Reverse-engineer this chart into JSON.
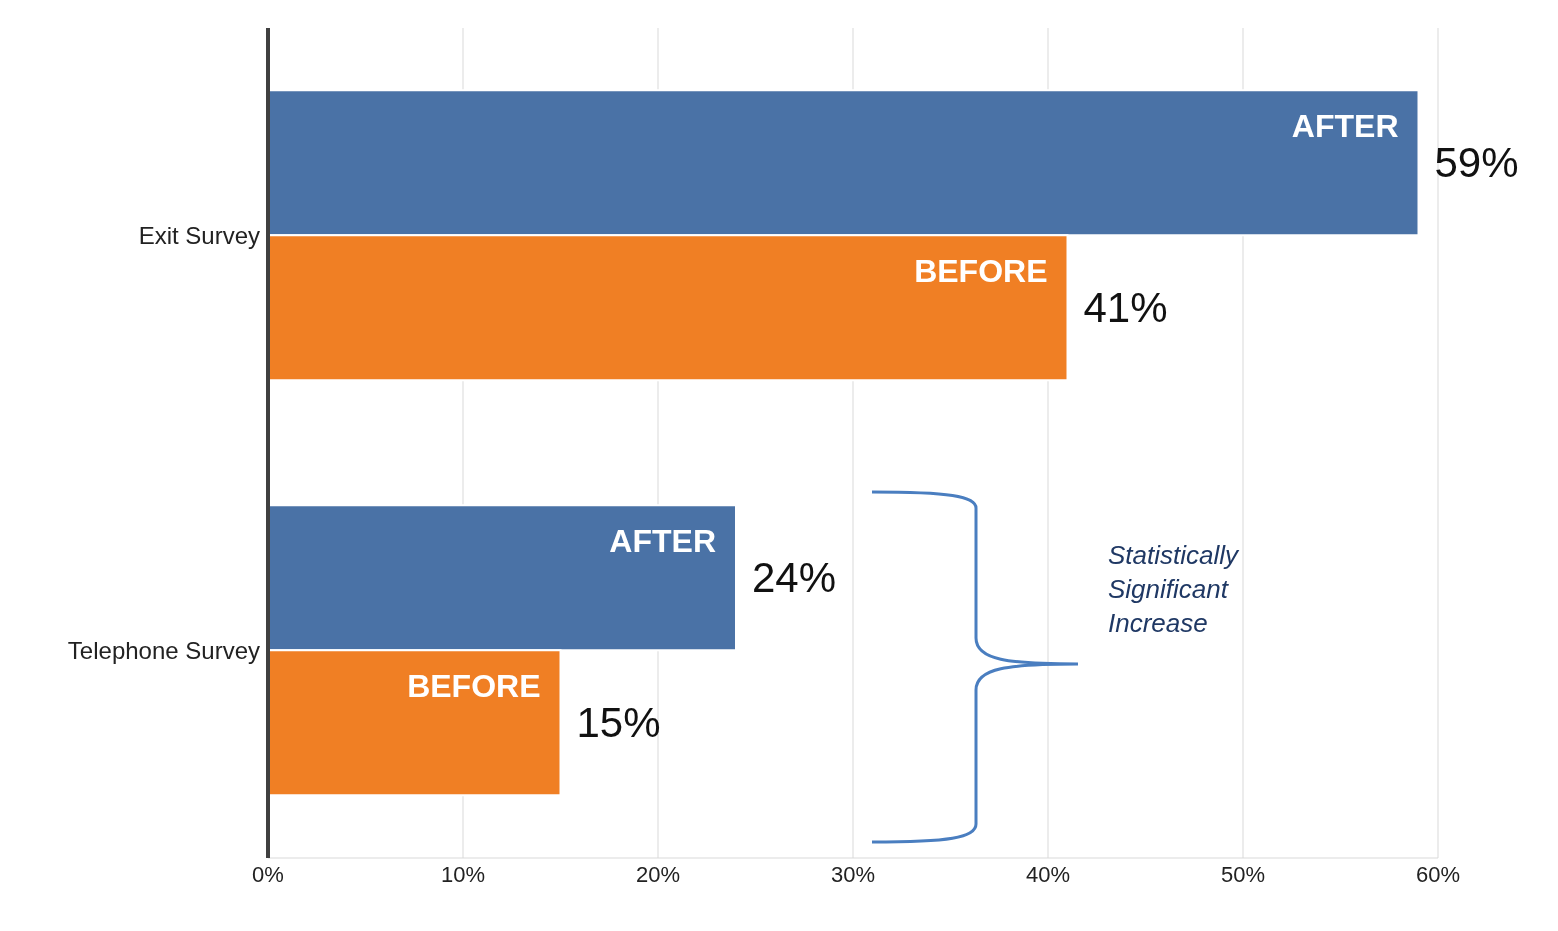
{
  "chart_data": {
    "type": "bar",
    "orientation": "horizontal",
    "categories": [
      "Exit Survey",
      "Telephone Survey"
    ],
    "series": [
      {
        "name": "AFTER",
        "color": "#4a72a6",
        "values": [
          59,
          24
        ],
        "value_labels": [
          "59%",
          "24%"
        ]
      },
      {
        "name": "BEFORE",
        "color": "#f07f24",
        "values": [
          41,
          15
        ],
        "value_labels": [
          "41%",
          "15%"
        ]
      }
    ],
    "xlim": [
      0,
      60
    ],
    "xticks": [
      {
        "value": 0,
        "label": "0%"
      },
      {
        "value": 10,
        "label": "10%"
      },
      {
        "value": 20,
        "label": "20%"
      },
      {
        "value": 30,
        "label": "30%"
      },
      {
        "value": 40,
        "label": "40%"
      },
      {
        "value": 50,
        "label": "50%"
      },
      {
        "value": 60,
        "label": "60%"
      }
    ],
    "grid": "x",
    "legend": false,
    "annotations": [
      "Statistically Significant Increase"
    ]
  }
}
